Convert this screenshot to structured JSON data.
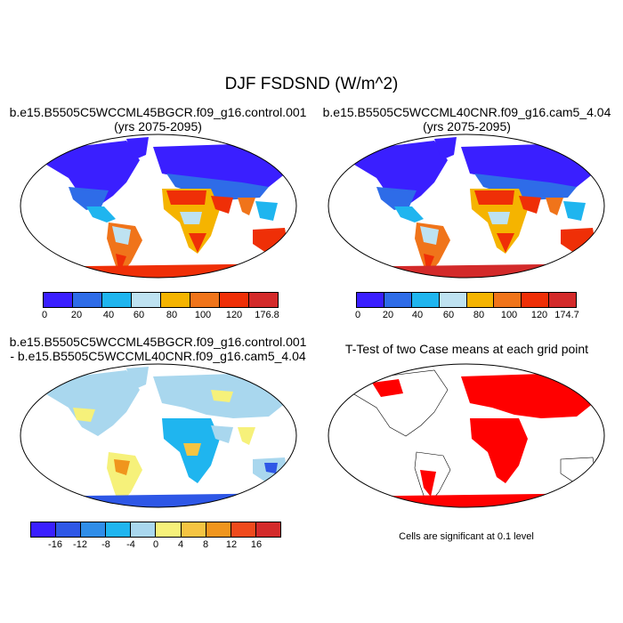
{
  "title": "DJF FSDSND (W/m^2)",
  "panels": [
    {
      "title_line1": "b.e15.B5505C5WCCML45BGCR.f09_g16.control.001",
      "title_line2": "(yrs 2075-2095)"
    },
    {
      "title_line1": "b.e15.B5505C5WCCML40CNR.f09_g16.cam5_4.04",
      "title_line2": "(yrs 2075-2095)"
    },
    {
      "title_line1": "b.e15.B5505C5WCCML45BGCR.f09_g16.control.001",
      "title_line2": "- b.e15.B5505C5WCCML40CNR.f09_g16.cam5_4.04"
    },
    {
      "title_line1": "T-Test of two Case means at each grid point",
      "title_line2": ""
    }
  ],
  "colorbars": [
    {
      "colors": [
        "#3a1fff",
        "#2e6ce8",
        "#1fb5ef",
        "#bee2f1",
        "#f5b400",
        "#f0741a",
        "#ef2f07",
        "#d32a2a"
      ],
      "labels": [
        "0",
        "20",
        "40",
        "60",
        "80",
        "100",
        "120",
        "176.8"
      ]
    },
    {
      "colors": [
        "#3a1fff",
        "#2e6ce8",
        "#1fb5ef",
        "#bee2f1",
        "#f5b400",
        "#f0741a",
        "#ef2f07",
        "#d32a2a"
      ],
      "labels": [
        "0",
        "20",
        "40",
        "60",
        "80",
        "100",
        "120",
        "174.7"
      ]
    },
    {
      "colors": [
        "#3a1fff",
        "#2e57e6",
        "#2f8de8",
        "#1fb5ef",
        "#a9d7ee",
        "#f6f17a",
        "#f5c442",
        "#f0951d",
        "#ef4a1c",
        "#d32a2a"
      ],
      "labels": [
        "-16",
        "-12",
        "-8",
        "-4",
        "0",
        "4",
        "8",
        "12",
        "16"
      ]
    }
  ],
  "footnote": "Cells are significant at 0.1 level",
  "palette": {
    "abs": [
      "#3a1fff",
      "#2e6ce8",
      "#1fb5ef",
      "#bee2f1",
      "#f5b400",
      "#f0741a",
      "#ef2f07",
      "#d32a2a"
    ],
    "diff_neutral": "#a9d7ee",
    "sig": "#ff0000"
  }
}
